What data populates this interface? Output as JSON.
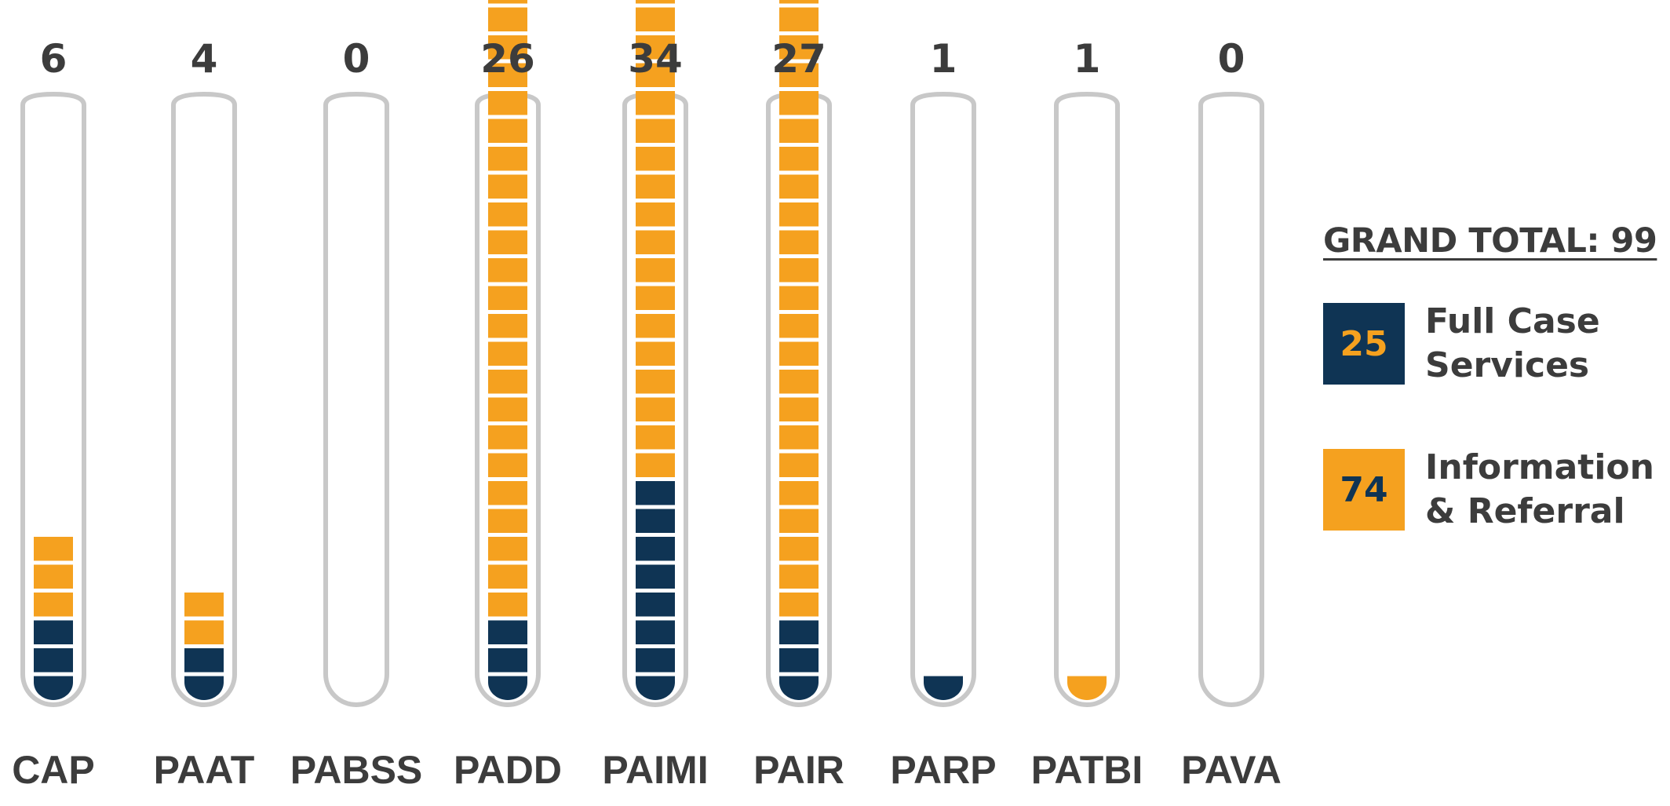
{
  "colors": {
    "full_case": "#0f3454",
    "info_referral": "#f5a11f",
    "tube_outline": "#c8c8c8",
    "text": "#3c3c3c"
  },
  "legend": {
    "grand_total": "GRAND TOTAL: 99",
    "items": [
      {
        "value": "25",
        "label": "Full Case\nServices",
        "color_key": "full_case"
      },
      {
        "value": "74",
        "label": "Information\n& Referral",
        "color_key": "info_referral"
      }
    ]
  },
  "chart_data": {
    "type": "bar",
    "stacked": true,
    "categories": [
      "CAP",
      "PAAT",
      "PABSS",
      "PADD",
      "PAIMI",
      "PAIR",
      "PARP",
      "PATBI",
      "PAVA"
    ],
    "totals": [
      6,
      4,
      0,
      26,
      34,
      27,
      1,
      1,
      0
    ],
    "series": [
      {
        "name": "Full Case Services",
        "values": [
          3,
          2,
          0,
          3,
          8,
          3,
          1,
          0,
          0
        ]
      },
      {
        "name": "Information & Referral",
        "values": [
          3,
          2,
          0,
          23,
          26,
          24,
          0,
          1,
          0
        ]
      }
    ],
    "ylim": [
      0,
      50
    ]
  }
}
